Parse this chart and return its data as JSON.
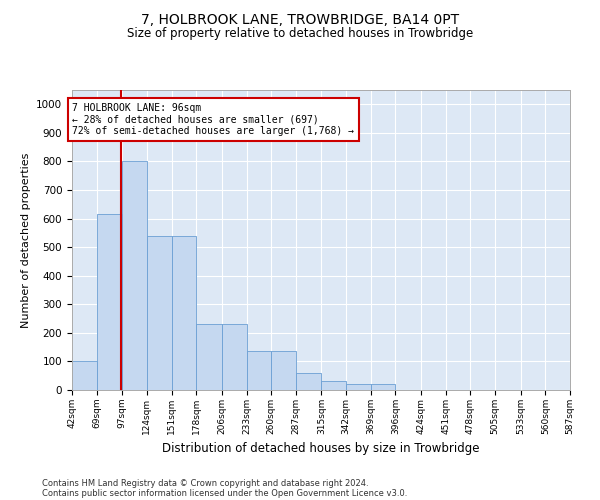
{
  "title": "7, HOLBROOK LANE, TROWBRIDGE, BA14 0PT",
  "subtitle": "Size of property relative to detached houses in Trowbridge",
  "xlabel": "Distribution of detached houses by size in Trowbridge",
  "ylabel": "Number of detached properties",
  "footer_line1": "Contains HM Land Registry data © Crown copyright and database right 2024.",
  "footer_line2": "Contains public sector information licensed under the Open Government Licence v3.0.",
  "annotation_line1": "7 HOLBROOK LANE: 96sqm",
  "annotation_line2": "← 28% of detached houses are smaller (697)",
  "annotation_line3": "72% of semi-detached houses are larger (1,768) →",
  "property_size": 96,
  "bin_edges": [
    42,
    69,
    97,
    124,
    151,
    178,
    206,
    233,
    260,
    287,
    315,
    342,
    369,
    396,
    424,
    451,
    478,
    505,
    533,
    560,
    587
  ],
  "bar_heights": [
    100,
    615,
    800,
    540,
    540,
    230,
    230,
    135,
    135,
    60,
    30,
    20,
    20,
    0,
    0,
    0,
    0,
    0,
    0,
    0
  ],
  "bar_color": "#c5d8f0",
  "bar_edge_color": "#6b9fd4",
  "red_line_color": "#cc0000",
  "annotation_box_color": "#cc0000",
  "background_color": "#dde8f5",
  "ylim": [
    0,
    1050
  ],
  "yticks": [
    0,
    100,
    200,
    300,
    400,
    500,
    600,
    700,
    800,
    900,
    1000
  ]
}
